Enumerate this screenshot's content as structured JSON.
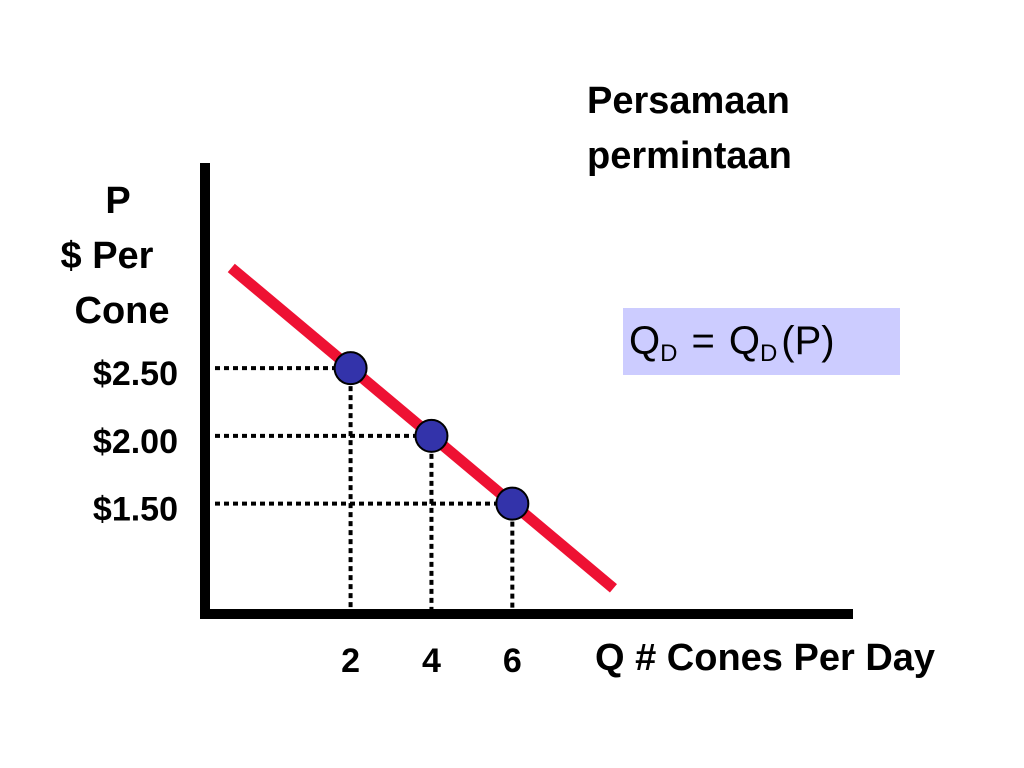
{
  "chart_data": {
    "type": "scatter",
    "title": [
      "Persamaan",
      "permintaan"
    ],
    "y_label": [
      "P",
      "$ Per",
      "Cone"
    ],
    "x_label": "Q  # Cones Per Day",
    "equation": {
      "lhs": "Q",
      "lhs_sub": "D",
      "op": "=",
      "rhs": "Q",
      "rhs_sub": "D",
      "arg": "(P)"
    },
    "points": {
      "x": [
        2,
        4,
        6
      ],
      "values": [
        2.5,
        2.0,
        1.5
      ],
      "color": "#3333aa"
    },
    "demand_line": {
      "x": [
        -0.95,
        8.5
      ],
      "values": [
        3.24,
        0.875
      ],
      "color": "#ee1133"
    },
    "xlim": [
      -1.6,
      14.35
    ],
    "ylim": [
      0.7,
      4.0
    ],
    "xticks": [
      2,
      4,
      6
    ],
    "yticks": [
      {
        "value": 2.5,
        "label": "$2.50"
      },
      {
        "value": 2.0,
        "label": "$2.00"
      },
      {
        "value": 1.5,
        "label": "$1.50"
      }
    ],
    "guides": true
  }
}
